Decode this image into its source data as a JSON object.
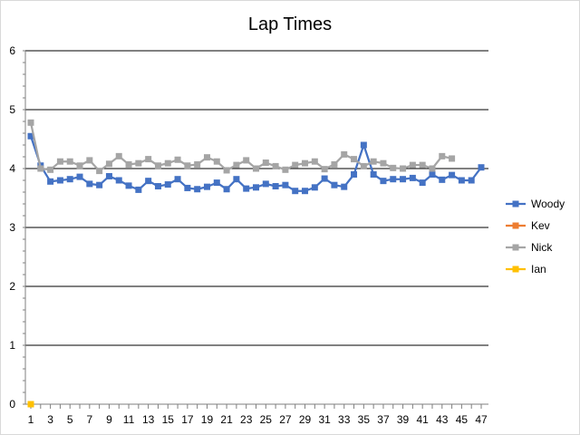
{
  "chart_data": {
    "type": "line",
    "title": "Lap Times",
    "xlabel": "",
    "ylabel": "",
    "ylim": [
      0,
      6
    ],
    "yticks": [
      0,
      1,
      2,
      3,
      4,
      5,
      6
    ],
    "xlim": [
      1,
      47
    ],
    "xtick_labels": [
      "1",
      "3",
      "5",
      "7",
      "9",
      "11",
      "13",
      "15",
      "17",
      "19",
      "21",
      "23",
      "25",
      "27",
      "29",
      "31",
      "33",
      "35",
      "37",
      "39",
      "41",
      "43",
      "45",
      "47"
    ],
    "grid": "horizontal",
    "legend_position": "right",
    "series": [
      {
        "name": "Woody",
        "color": "#4472c4",
        "marker": "square",
        "x": [
          1,
          2,
          3,
          4,
          5,
          6,
          7,
          8,
          9,
          10,
          11,
          12,
          13,
          14,
          15,
          16,
          17,
          18,
          19,
          20,
          21,
          22,
          23,
          24,
          25,
          26,
          27,
          28,
          29,
          30,
          31,
          32,
          33,
          34,
          35,
          36,
          37,
          38,
          39,
          40,
          41,
          42,
          43,
          44,
          45,
          46,
          47
        ],
        "values": [
          4.55,
          4.05,
          3.78,
          3.8,
          3.82,
          3.86,
          3.74,
          3.72,
          3.87,
          3.8,
          3.71,
          3.64,
          3.79,
          3.7,
          3.73,
          3.82,
          3.67,
          3.65,
          3.69,
          3.76,
          3.65,
          3.82,
          3.66,
          3.68,
          3.74,
          3.7,
          3.72,
          3.62,
          3.62,
          3.68,
          3.83,
          3.72,
          3.69,
          3.9,
          4.4,
          3.9,
          3.79,
          3.82,
          3.82,
          3.84,
          3.76,
          3.9,
          3.81,
          3.89,
          3.8,
          3.8,
          4.02
        ]
      },
      {
        "name": "Kev",
        "color": "#ed7d31",
        "marker": "square",
        "x": [],
        "values": []
      },
      {
        "name": "Nick",
        "color": "#a5a5a5",
        "marker": "square",
        "x": [
          1,
          2,
          3,
          4,
          5,
          6,
          7,
          8,
          9,
          10,
          11,
          12,
          13,
          14,
          15,
          16,
          17,
          18,
          19,
          20,
          21,
          22,
          23,
          24,
          25,
          26,
          27,
          28,
          29,
          30,
          31,
          32,
          33,
          34,
          35,
          36,
          37,
          38,
          39,
          40,
          41,
          42,
          43,
          44
        ],
        "values": [
          4.78,
          4.0,
          3.98,
          4.12,
          4.12,
          4.05,
          4.14,
          3.96,
          4.08,
          4.21,
          4.07,
          4.09,
          4.16,
          4.05,
          4.09,
          4.15,
          4.05,
          4.07,
          4.19,
          4.12,
          3.97,
          4.06,
          4.14,
          4.0,
          4.1,
          4.04,
          3.98,
          4.06,
          4.09,
          4.12,
          3.99,
          4.07,
          4.24,
          4.16,
          4.04,
          4.12,
          4.09,
          4.01,
          4.0,
          4.06,
          4.06,
          4.0,
          4.21,
          4.17
        ]
      },
      {
        "name": "Ian",
        "color": "#ffc000",
        "marker": "square",
        "x": [
          1
        ],
        "values": [
          0
        ]
      }
    ]
  }
}
